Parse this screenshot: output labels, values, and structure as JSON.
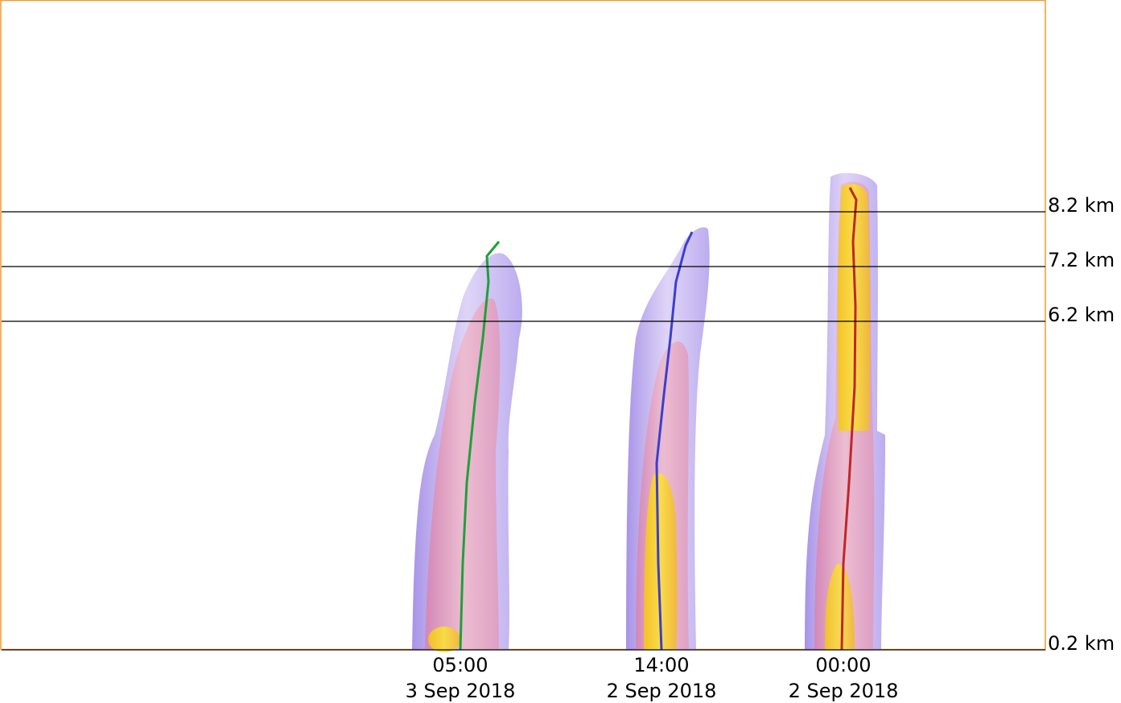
{
  "levels": [
    {
      "value": 0.2,
      "label": "0.2 km"
    },
    {
      "value": 6.2,
      "label": "6.2 km"
    },
    {
      "value": 7.2,
      "label": "7.2 km"
    },
    {
      "value": 8.2,
      "label": "8.2 km"
    }
  ],
  "times": [
    {
      "time": "05:00",
      "date": "3 Sep 2018"
    },
    {
      "time": "14:00",
      "date": "2 Sep 2018"
    },
    {
      "time": "00:00",
      "date": "2 Sep 2018"
    }
  ]
}
